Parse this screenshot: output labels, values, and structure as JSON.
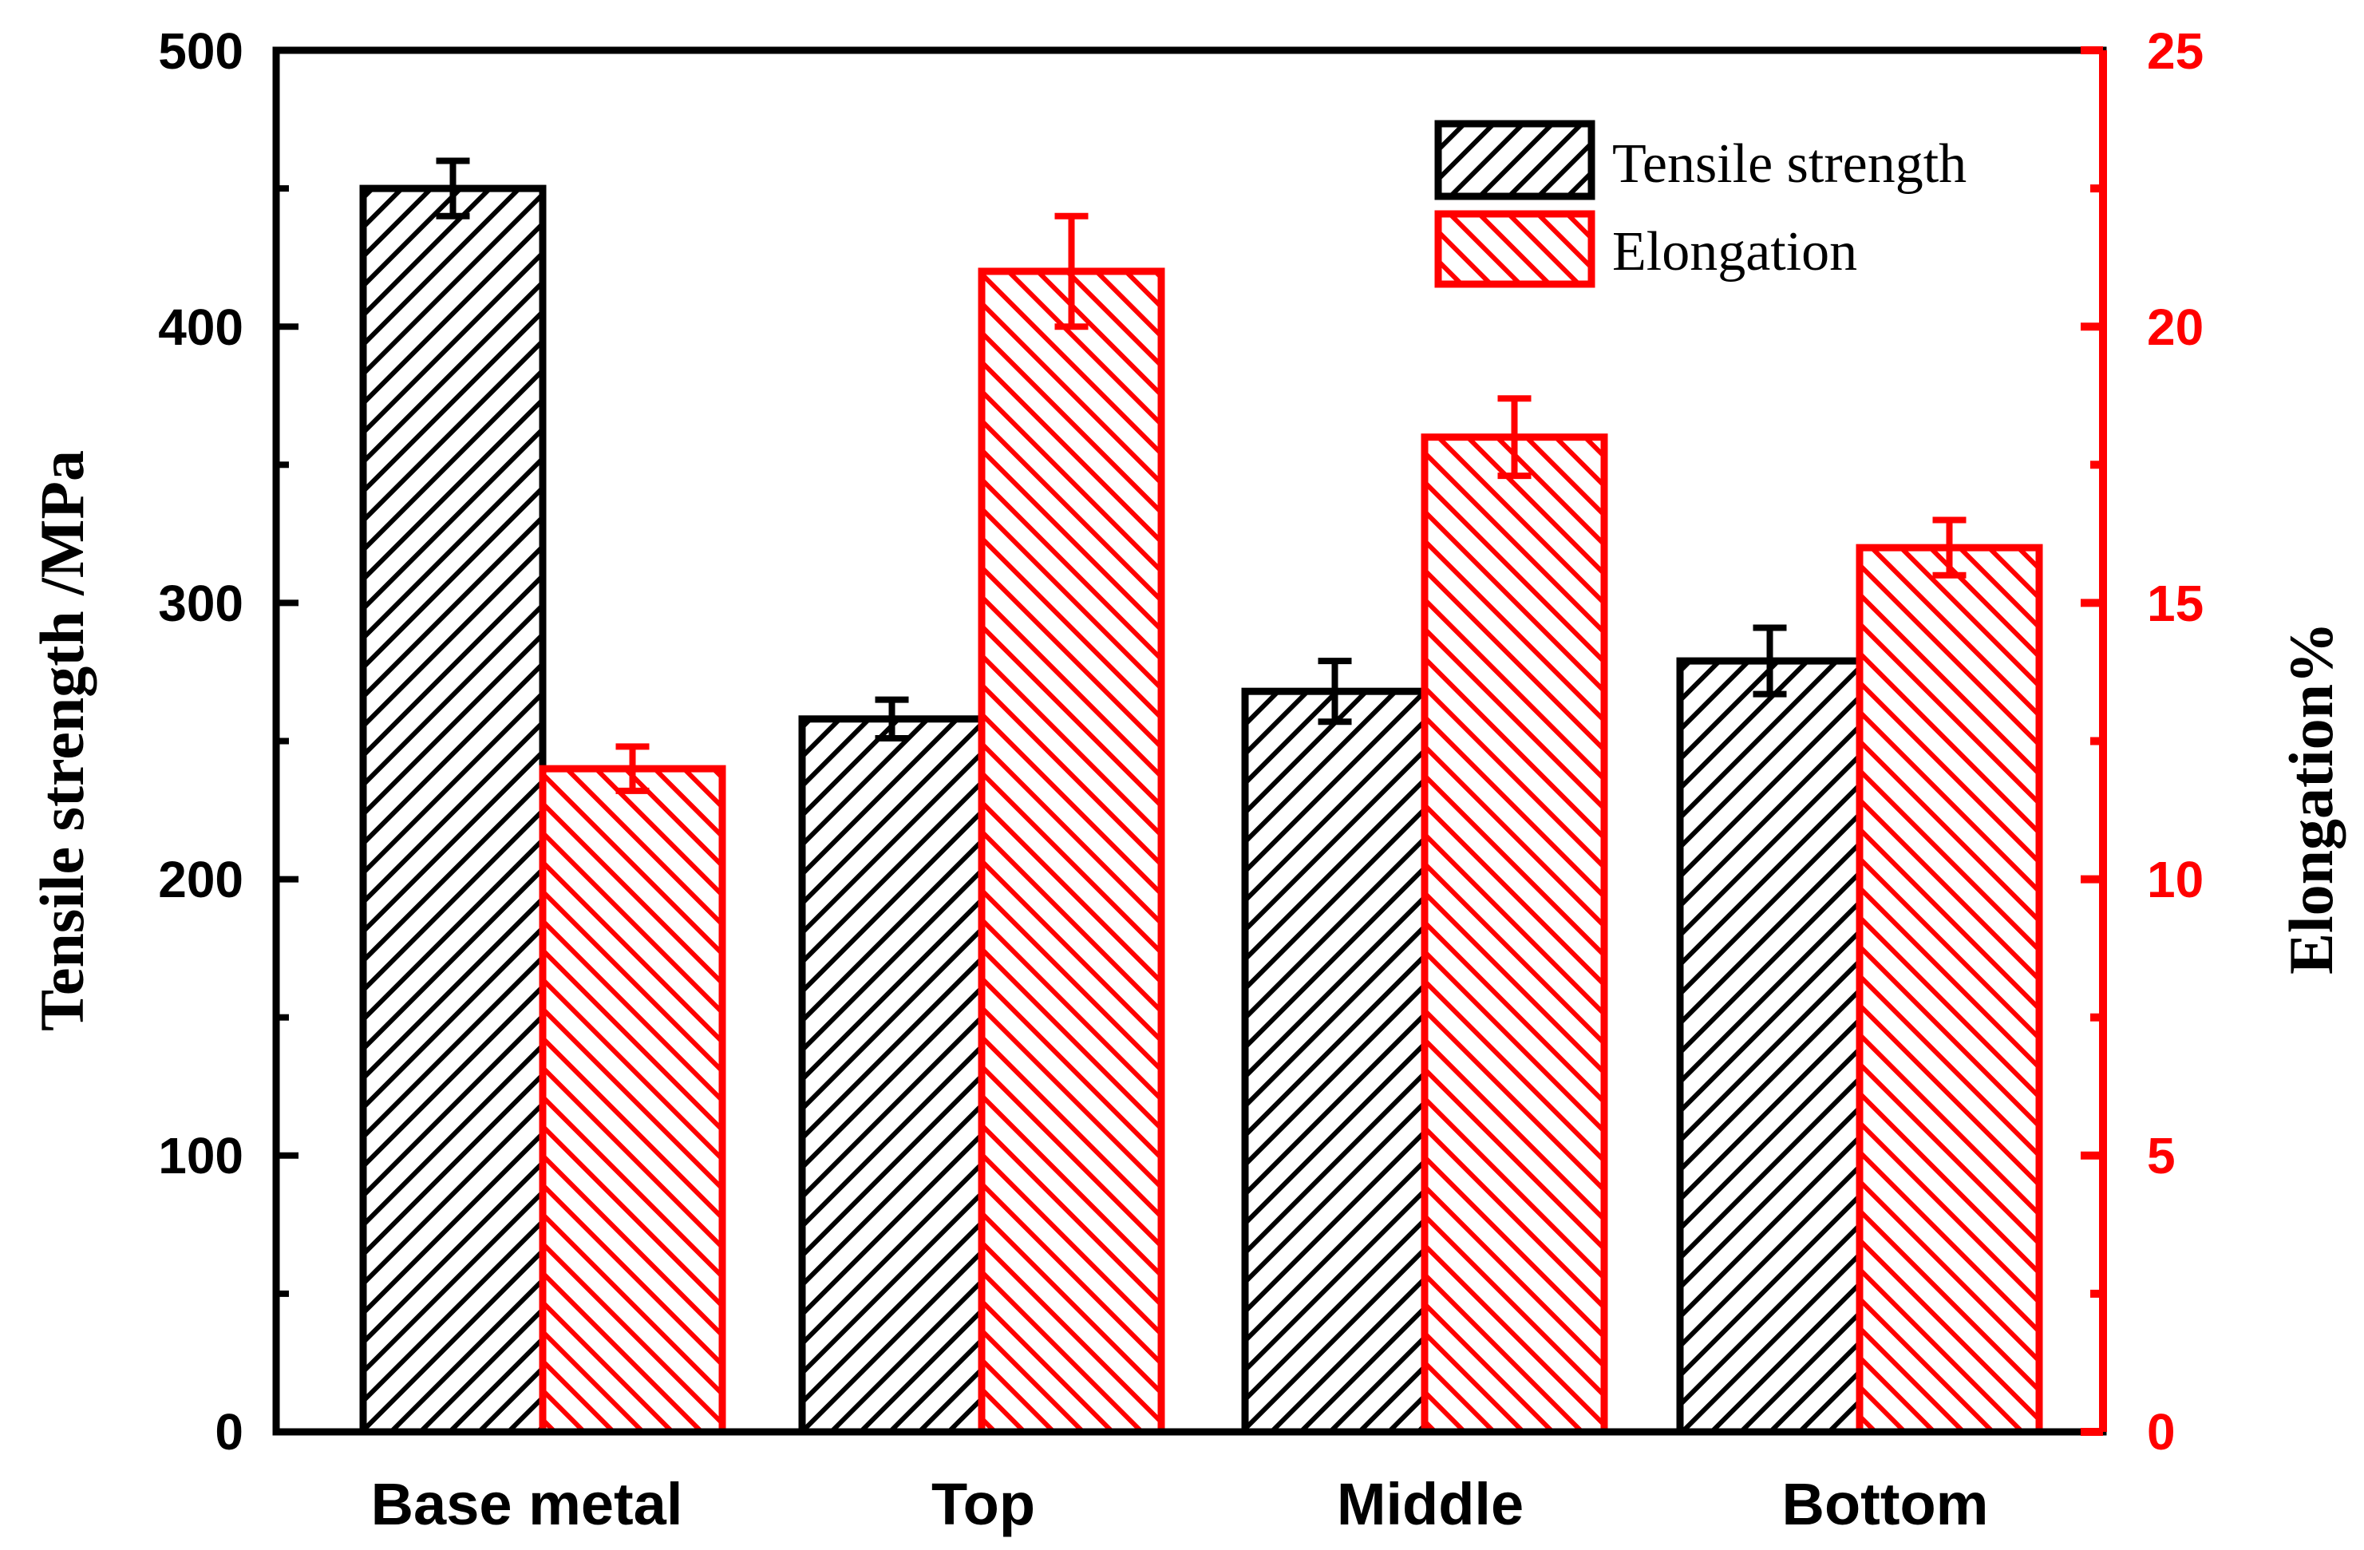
{
  "chart_data": {
    "type": "bar",
    "categories": [
      "Base metal",
      "Top",
      "Middle",
      "Bottom"
    ],
    "series": [
      {
        "name": "Tensile strength",
        "axis": "left",
        "color": "#000000",
        "values": [
          450,
          258,
          268,
          279
        ],
        "errors": [
          10,
          7,
          11,
          12
        ]
      },
      {
        "name": "Elongation",
        "axis": "right",
        "color": "#ff0000",
        "values": [
          12,
          21,
          18,
          16
        ],
        "errors": [
          0.4,
          1.0,
          0.7,
          0.5
        ]
      }
    ],
    "ylabel_left": "Tensile strength /MPa",
    "ylabel_right": "Elongation%",
    "ylim_left": [
      0,
      500
    ],
    "ylim_right": [
      0,
      25
    ],
    "yticks_left": [
      "0",
      "100",
      "200",
      "300",
      "400",
      "500"
    ],
    "yticks_right": [
      "0",
      "5",
      "10",
      "15",
      "20",
      "25"
    ],
    "legend_position": "top-right",
    "xlabel": "",
    "title": ""
  }
}
